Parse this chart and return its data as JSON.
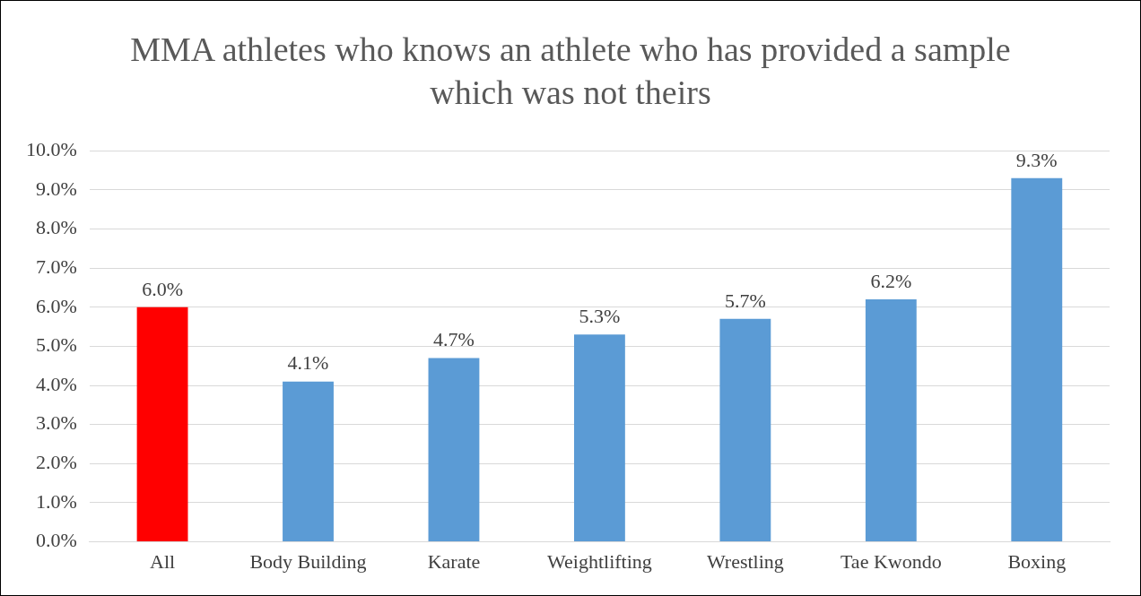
{
  "chart_data": {
    "type": "bar",
    "title": "MMA athletes who knows an athlete who has provided a sample which was not theirs",
    "categories": [
      "All",
      "Body Building",
      "Karate",
      "Weightlifting",
      "Wrestling",
      "Tae Kwondo",
      "Boxing"
    ],
    "values": [
      6.0,
      4.1,
      4.7,
      5.3,
      5.7,
      6.2,
      9.3
    ],
    "colors": [
      "#ff0000",
      "#5b9bd5",
      "#5b9bd5",
      "#5b9bd5",
      "#5b9bd5",
      "#5b9bd5",
      "#5b9bd5"
    ],
    "value_labels": [
      "6.0%",
      "4.1%",
      "4.7%",
      "5.3%",
      "5.7%",
      "6.2%",
      "9.3%"
    ],
    "ylim": [
      0,
      10
    ],
    "yticks": [
      {
        "value": 0,
        "label": "0.0%"
      },
      {
        "value": 1,
        "label": "1.0%"
      },
      {
        "value": 2,
        "label": "2.0%"
      },
      {
        "value": 3,
        "label": "3.0%"
      },
      {
        "value": 4,
        "label": "4.0%"
      },
      {
        "value": 5,
        "label": "5.0%"
      },
      {
        "value": 6,
        "label": "6.0%"
      },
      {
        "value": 7,
        "label": "7.0%"
      },
      {
        "value": 8,
        "label": "8.0%"
      },
      {
        "value": 9,
        "label": "9.0%"
      },
      {
        "value": 10,
        "label": "10.0%"
      }
    ],
    "grid": "y",
    "legend": false
  }
}
